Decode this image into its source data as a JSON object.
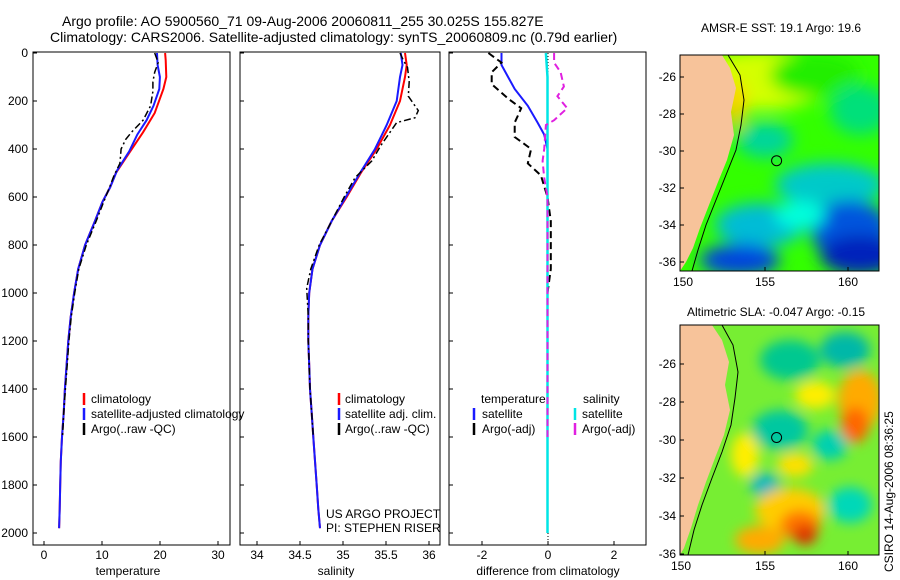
{
  "header": {
    "line1": "Argo profile: AO 5900560_71 09-Aug-2006 20060811_255 30.025S 155.827E",
    "line2": "Climatology: CARS2006. Satellite-adjusted climatology: synTS_20060809.nc (0.79d earlier)"
  },
  "side_text": "CSIRO 14-Aug-2006 08:36:25",
  "colors": {
    "clim": "#ff0000",
    "sat": "#1a1aff",
    "argo": "#000000",
    "sat_diff_sal": "#00e5e5",
    "argo_diff_sal": "#e020e0",
    "land": "#f7c39a"
  },
  "chart_data": [
    {
      "type": "line",
      "xlabel": "temperature",
      "xlim": [
        -2,
        32
      ],
      "ylim": [
        0,
        2050
      ],
      "xticks": [
        "0",
        "10",
        "20",
        "30"
      ],
      "yticks": [
        "0",
        "200",
        "400",
        "600",
        "800",
        "1000",
        "1200",
        "1400",
        "1600",
        "1800",
        "2000"
      ],
      "legend": [
        "climatology",
        "satellite-adjusted climatology",
        "Argo(..raw -QC)"
      ],
      "series": [
        {
          "name": "climatology",
          "points": [
            [
              20.8,
              0
            ],
            [
              20.9,
              30
            ],
            [
              21.0,
              100
            ],
            [
              20.5,
              150
            ],
            [
              19.0,
              250
            ],
            [
              17.0,
              330
            ],
            [
              14.5,
              420
            ],
            [
              12.3,
              500
            ],
            [
              11.3,
              560
            ],
            [
              10.0,
              620
            ],
            [
              8.7,
              700
            ],
            [
              7.0,
              800
            ],
            [
              5.8,
              900
            ],
            [
              5.1,
              1000
            ],
            [
              4.5,
              1100
            ],
            [
              4.1,
              1200
            ],
            [
              3.8,
              1300
            ],
            [
              3.5,
              1400
            ],
            [
              3.3,
              1500
            ],
            [
              3.0,
              1600
            ],
            [
              2.8,
              1700
            ],
            [
              2.7,
              1800
            ],
            [
              2.6,
              1900
            ],
            [
              2.5,
              1980
            ]
          ]
        },
        {
          "name": "satellite",
          "points": [
            [
              19.4,
              0
            ],
            [
              19.5,
              50
            ],
            [
              19.9,
              100
            ],
            [
              19.8,
              150
            ],
            [
              18.8,
              220
            ],
            [
              17.6,
              280
            ],
            [
              16.0,
              340
            ],
            [
              14.6,
              410
            ],
            [
              12.5,
              490
            ],
            [
              11.3,
              560
            ],
            [
              10.0,
              620
            ],
            [
              8.7,
              700
            ],
            [
              7.0,
              800
            ],
            [
              5.8,
              900
            ],
            [
              5.1,
              1000
            ],
            [
              4.5,
              1100
            ],
            [
              4.1,
              1200
            ],
            [
              3.8,
              1300
            ],
            [
              3.5,
              1400
            ],
            [
              3.3,
              1500
            ],
            [
              3.0,
              1600
            ],
            [
              2.8,
              1700
            ],
            [
              2.7,
              1800
            ],
            [
              2.6,
              1900
            ],
            [
              2.5,
              1980
            ]
          ]
        },
        {
          "name": "argo",
          "points": [
            [
              19.0,
              0
            ],
            [
              19.6,
              40
            ],
            [
              19.0,
              80
            ],
            [
              18.7,
              120
            ],
            [
              18.7,
              160
            ],
            [
              18.3,
              220
            ],
            [
              17.0,
              280
            ],
            [
              15.0,
              330
            ],
            [
              14.0,
              360
            ],
            [
              13.2,
              400
            ],
            [
              13.0,
              460
            ],
            [
              12.0,
              510
            ],
            [
              11.2,
              560
            ],
            [
              10.2,
              620
            ],
            [
              8.9,
              700
            ],
            [
              7.2,
              800
            ],
            [
              5.9,
              900
            ],
            [
              5.2,
              1000
            ],
            [
              4.6,
              1100
            ],
            [
              4.2,
              1200
            ],
            [
              3.9,
              1300
            ],
            [
              3.6,
              1400
            ],
            [
              3.3,
              1500
            ],
            [
              3.1,
              1600
            ]
          ]
        }
      ]
    },
    {
      "type": "line",
      "xlabel": "salinity",
      "xlim": [
        33.7,
        36.1
      ],
      "ylim": [
        0,
        2050
      ],
      "xticks": [
        "34",
        "34.5",
        "35",
        "35.5",
        "36"
      ],
      "legend": [
        "climatology",
        "satellite adj. clim.",
        "Argo(..raw -QC)"
      ],
      "note": [
        "US ARGO PROJECT",
        "PI: STEPHEN RISER"
      ],
      "series": [
        {
          "name": "climatology",
          "points": [
            [
              35.68,
              0
            ],
            [
              35.7,
              50
            ],
            [
              35.68,
              100
            ],
            [
              35.62,
              200
            ],
            [
              35.5,
              300
            ],
            [
              35.34,
              400
            ],
            [
              35.15,
              500
            ],
            [
              34.98,
              600
            ],
            [
              34.8,
              700
            ],
            [
              34.66,
              800
            ],
            [
              34.57,
              900
            ],
            [
              34.53,
              1000
            ],
            [
              34.52,
              1100
            ],
            [
              34.52,
              1200
            ],
            [
              34.53,
              1300
            ],
            [
              34.54,
              1400
            ],
            [
              34.56,
              1500
            ],
            [
              34.58,
              1600
            ],
            [
              34.6,
              1700
            ],
            [
              34.62,
              1800
            ],
            [
              34.64,
              1900
            ],
            [
              34.66,
              1980
            ]
          ]
        },
        {
          "name": "satellite",
          "points": [
            [
              35.63,
              0
            ],
            [
              35.65,
              50
            ],
            [
              35.62,
              100
            ],
            [
              35.58,
              200
            ],
            [
              35.46,
              300
            ],
            [
              35.32,
              400
            ],
            [
              35.14,
              500
            ],
            [
              34.97,
              600
            ],
            [
              34.8,
              700
            ],
            [
              34.66,
              800
            ],
            [
              34.57,
              900
            ],
            [
              34.53,
              1000
            ],
            [
              34.52,
              1100
            ],
            [
              34.52,
              1200
            ],
            [
              34.53,
              1300
            ],
            [
              34.54,
              1400
            ],
            [
              34.56,
              1500
            ],
            [
              34.58,
              1600
            ],
            [
              34.6,
              1700
            ],
            [
              34.62,
              1800
            ],
            [
              34.64,
              1900
            ],
            [
              34.66,
              1980
            ]
          ]
        },
        {
          "name": "argo",
          "points": [
            [
              35.62,
              0
            ],
            [
              35.66,
              30
            ],
            [
              35.71,
              60
            ],
            [
              35.73,
              120
            ],
            [
              35.72,
              180
            ],
            [
              35.84,
              240
            ],
            [
              35.8,
              270
            ],
            [
              35.58,
              290
            ],
            [
              35.4,
              380
            ],
            [
              35.28,
              450
            ],
            [
              35.08,
              520
            ],
            [
              34.95,
              600
            ],
            [
              34.8,
              700
            ],
            [
              34.65,
              800
            ],
            [
              34.55,
              900
            ],
            [
              34.5,
              980
            ],
            [
              34.52,
              1100
            ],
            [
              34.52,
              1200
            ],
            [
              34.53,
              1300
            ],
            [
              34.54,
              1400
            ],
            [
              34.56,
              1500
            ],
            [
              34.58,
              1600
            ]
          ]
        }
      ]
    },
    {
      "type": "line",
      "xlabel": "difference from climatology",
      "xlim": [
        -3,
        3
      ],
      "ylim": [
        0,
        2050
      ],
      "xticks": [
        "-2",
        "0",
        "2"
      ],
      "legend_headers": [
        "temperature",
        "salinity"
      ],
      "legend": [
        "satellite",
        "Argo(-adj)",
        "satellite",
        "Argo(-adj)"
      ],
      "series": [
        {
          "name": "temp_satellite",
          "points": [
            [
              -1.4,
              0
            ],
            [
              -1.4,
              50
            ],
            [
              -1.2,
              100
            ],
            [
              -1.0,
              150
            ],
            [
              -0.6,
              220
            ],
            [
              -0.3,
              290
            ],
            [
              -0.1,
              340
            ],
            [
              0.0,
              400
            ],
            [
              0.0,
              500
            ],
            [
              0.0,
              2000
            ]
          ]
        },
        {
          "name": "temp_argo",
          "points": [
            [
              -1.8,
              0
            ],
            [
              -1.4,
              40
            ],
            [
              -1.7,
              80
            ],
            [
              -1.7,
              130
            ],
            [
              -1.2,
              190
            ],
            [
              -0.8,
              230
            ],
            [
              -0.9,
              260
            ],
            [
              -1.0,
              290
            ],
            [
              -1.0,
              350
            ],
            [
              -0.5,
              400
            ],
            [
              -0.6,
              460
            ],
            [
              -0.2,
              510
            ],
            [
              0.0,
              600
            ],
            [
              0.1,
              700
            ],
            [
              0.1,
              800
            ],
            [
              0.1,
              900
            ],
            [
              0.0,
              1000
            ],
            [
              0.0,
              1600
            ]
          ]
        },
        {
          "name": "sal_satellite",
          "points": [
            [
              -0.05,
              0
            ],
            [
              0.0,
              100
            ],
            [
              0.0,
              2000
            ]
          ]
        },
        {
          "name": "sal_argo",
          "points": [
            [
              0.2,
              0
            ],
            [
              0.2,
              40
            ],
            [
              0.4,
              80
            ],
            [
              0.5,
              140
            ],
            [
              0.3,
              180
            ],
            [
              0.6,
              230
            ],
            [
              0.2,
              280
            ],
            [
              -0.05,
              300
            ],
            [
              -0.1,
              400
            ],
            [
              -0.15,
              450
            ],
            [
              -0.1,
              520
            ],
            [
              0.0,
              600
            ],
            [
              0.0,
              1600
            ]
          ]
        }
      ]
    },
    {
      "type": "heatmap",
      "title": "AMSR-E SST: 19.1  Argo: 19.6",
      "xticks": [
        "150",
        "155",
        "160"
      ],
      "yticks": [
        "-26",
        "-28",
        "-30",
        "-32",
        "-34",
        "-36"
      ],
      "xlim": [
        150,
        162
      ],
      "ylim": [
        -36,
        -24.3
      ],
      "profile_location": [
        155.827,
        -30.025
      ]
    },
    {
      "type": "heatmap",
      "title": "Altimetric SLA: -0.047  Argo: -0.15",
      "xticks": [
        "150",
        "155",
        "160"
      ],
      "yticks": [
        "-26",
        "-28",
        "-30",
        "-32",
        "-34",
        "-36"
      ],
      "xlim": [
        150,
        162
      ],
      "ylim": [
        -36,
        -24.3
      ],
      "profile_location": [
        155.827,
        -30.025
      ]
    }
  ]
}
